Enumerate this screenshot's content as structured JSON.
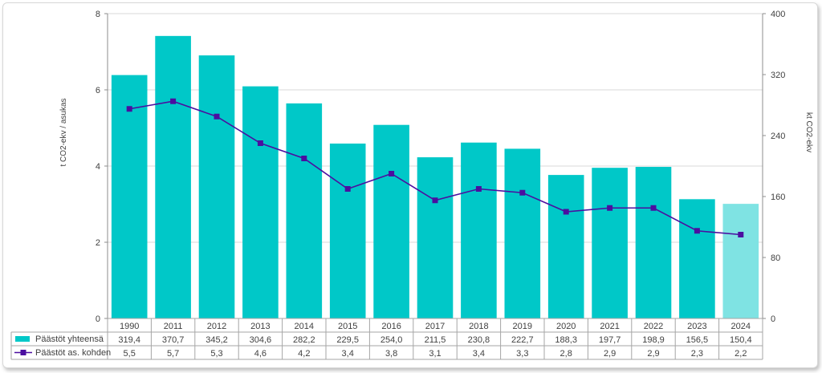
{
  "chart_data": {
    "type": "bar",
    "categories": [
      "1990",
      "2011",
      "2012",
      "2013",
      "2014",
      "2015",
      "2016",
      "2017",
      "2018",
      "2019",
      "2020",
      "2021",
      "2022",
      "2023",
      "2024"
    ],
    "ylabel_left": "t CO2-ekv / asukas",
    "ylabel_right": "kt CO2-ekv",
    "ylim_left": [
      0,
      8
    ],
    "ylim_right": [
      0,
      400
    ],
    "yticks_left": [
      "0",
      "2",
      "4",
      "6",
      "8"
    ],
    "yticks_right": [
      "0",
      "80",
      "160",
      "240",
      "320",
      "400"
    ],
    "grid": true,
    "series": [
      {
        "name": "Päästöt yhteensä",
        "type": "bar",
        "axis": "right",
        "color": "#00c8c8",
        "highlight_color": "#7fe3e3",
        "values": [
          319.4,
          370.7,
          345.2,
          304.6,
          282.2,
          229.5,
          254.0,
          211.5,
          230.8,
          222.7,
          188.3,
          197.7,
          198.9,
          156.5,
          150.4
        ],
        "value_labels": [
          "319,4",
          "370,7",
          "345,2",
          "304,6",
          "282,2",
          "229,5",
          "254,0",
          "211,5",
          "230,8",
          "222,7",
          "188,3",
          "197,7",
          "198,9",
          "156,5",
          "150,4"
        ]
      },
      {
        "name": "Päästöt as. kohden",
        "type": "line",
        "axis": "left",
        "color": "#4b0fa0",
        "values": [
          5.5,
          5.7,
          5.3,
          4.6,
          4.2,
          3.4,
          3.8,
          3.1,
          3.4,
          3.3,
          2.8,
          2.9,
          2.9,
          2.3,
          2.2
        ],
        "value_labels": [
          "5,5",
          "5,7",
          "5,3",
          "4,6",
          "4,2",
          "3,4",
          "3,8",
          "3,1",
          "3,4",
          "3,3",
          "2,8",
          "2,9",
          "2,9",
          "2,3",
          "2,2"
        ]
      }
    ]
  }
}
